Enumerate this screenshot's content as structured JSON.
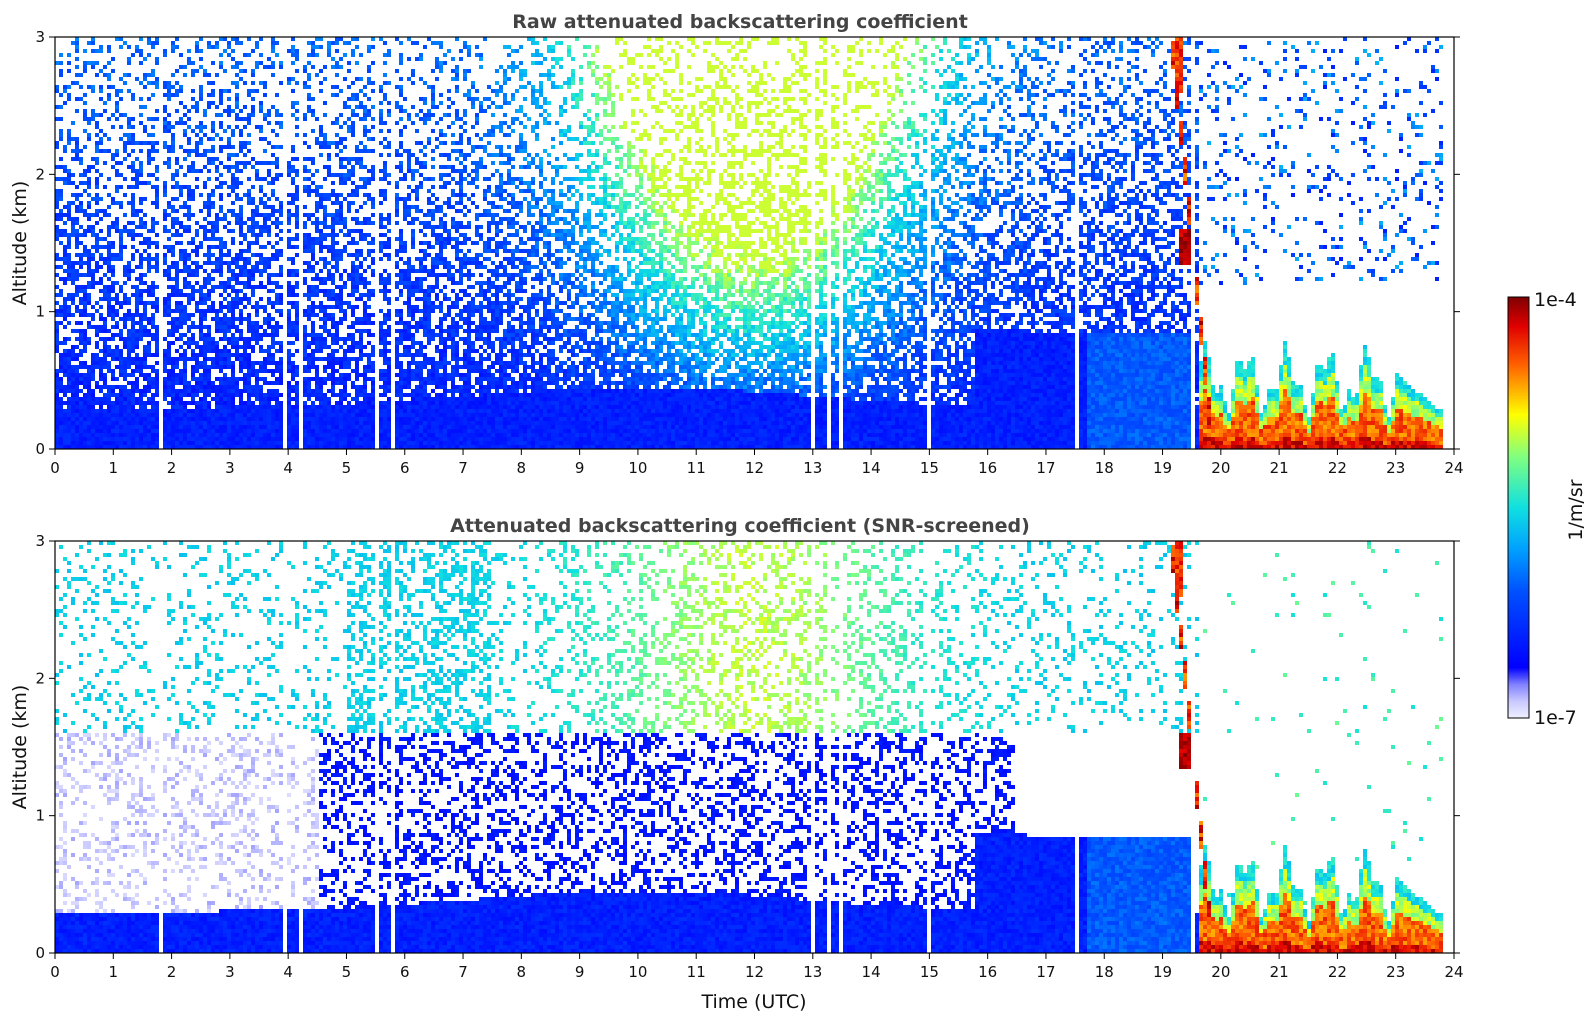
{
  "chart_data": [
    {
      "type": "heatmap",
      "title": "Raw attenuated backscattering coefficient",
      "xlabel": "",
      "ylabel": "Altitude (km)",
      "xlim": [
        0,
        24
      ],
      "ylim": [
        0,
        3
      ],
      "x_ticks": [
        "0",
        "1",
        "2",
        "3",
        "4",
        "5",
        "6",
        "7",
        "8",
        "9",
        "10",
        "11",
        "12",
        "13",
        "14",
        "15",
        "16",
        "17",
        "18",
        "19",
        "20",
        "21",
        "22",
        "23",
        "24"
      ],
      "y_ticks": [
        "0",
        "1",
        "2",
        "3"
      ],
      "screened": false
    },
    {
      "type": "heatmap",
      "title": "Attenuated backscattering coefficient (SNR-screened)",
      "xlabel": "Time (UTC)",
      "ylabel": "Altitude (km)",
      "xlim": [
        0,
        24
      ],
      "ylim": [
        0,
        3
      ],
      "x_ticks": [
        "0",
        "1",
        "2",
        "3",
        "4",
        "5",
        "6",
        "7",
        "8",
        "9",
        "10",
        "11",
        "12",
        "13",
        "14",
        "15",
        "16",
        "17",
        "18",
        "19",
        "20",
        "21",
        "22",
        "23",
        "24"
      ],
      "y_ticks": [
        "0",
        "1",
        "2",
        "3"
      ],
      "screened": true
    }
  ],
  "colorbar": {
    "label": "1/m/sr",
    "min_label": "1e-7",
    "max_label": "1e-4",
    "scale": "log",
    "colormap": "jet"
  },
  "features": {
    "boundary_layer_top_km": 0.3,
    "cloud_onset_time_utc": 19.6,
    "cloud_base_km": 0.05,
    "cloud_top_km": 0.7,
    "cloud_end_time_utc": 23.8,
    "gap_times_utc": [
      1.8,
      3.95,
      4.2,
      5.5,
      5.8,
      13.0,
      13.25,
      13.5,
      15.0,
      17.5,
      19.55
    ]
  }
}
